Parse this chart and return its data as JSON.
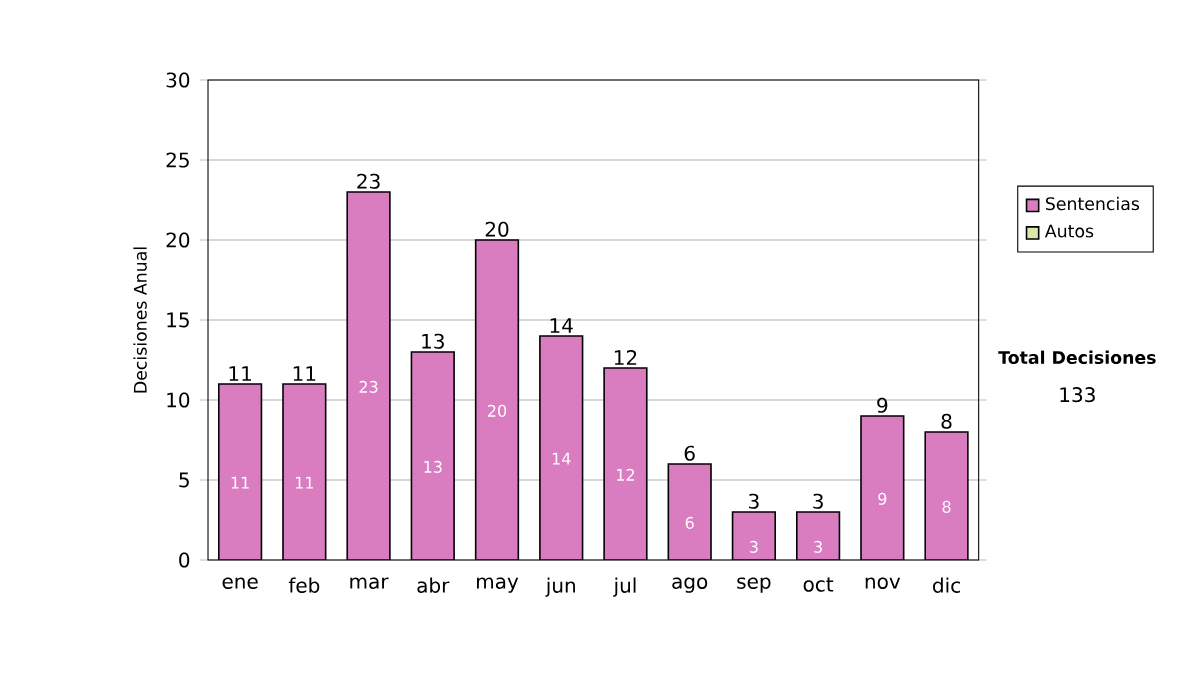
{
  "chart_data": {
    "type": "bar",
    "ylabel": "Decisiones Anual",
    "categories": [
      "ene",
      "feb",
      "mar",
      "abr",
      "may",
      "jun",
      "jul",
      "ago",
      "sep",
      "oct",
      "nov",
      "dic"
    ],
    "series": [
      {
        "name": "Sentencias",
        "color": "#d97cc0",
        "values": [
          11,
          11,
          23,
          13,
          20,
          14,
          12,
          6,
          3,
          3,
          9,
          8
        ],
        "value_labels": [
          "11",
          "11",
          "23",
          "13",
          "20",
          "14",
          "12",
          "6",
          "3",
          "3",
          "9",
          "8"
        ]
      },
      {
        "name": "Autos",
        "color": "#d8eaa8",
        "values": [
          0,
          0,
          0,
          0,
          0,
          0,
          0,
          0,
          0,
          0,
          0,
          0
        ]
      }
    ],
    "stacked": true,
    "totals": [
      "11",
      "11",
      "23",
      "13",
      "20",
      "14",
      "12",
      "6",
      "3",
      "3",
      "9",
      "8"
    ],
    "ylim": [
      0,
      30
    ],
    "yticks": [
      0,
      5,
      10,
      15,
      20,
      25,
      30
    ],
    "grid": "y",
    "legend": "right",
    "annotations": [
      "Total Decisiones",
      "133"
    ]
  }
}
